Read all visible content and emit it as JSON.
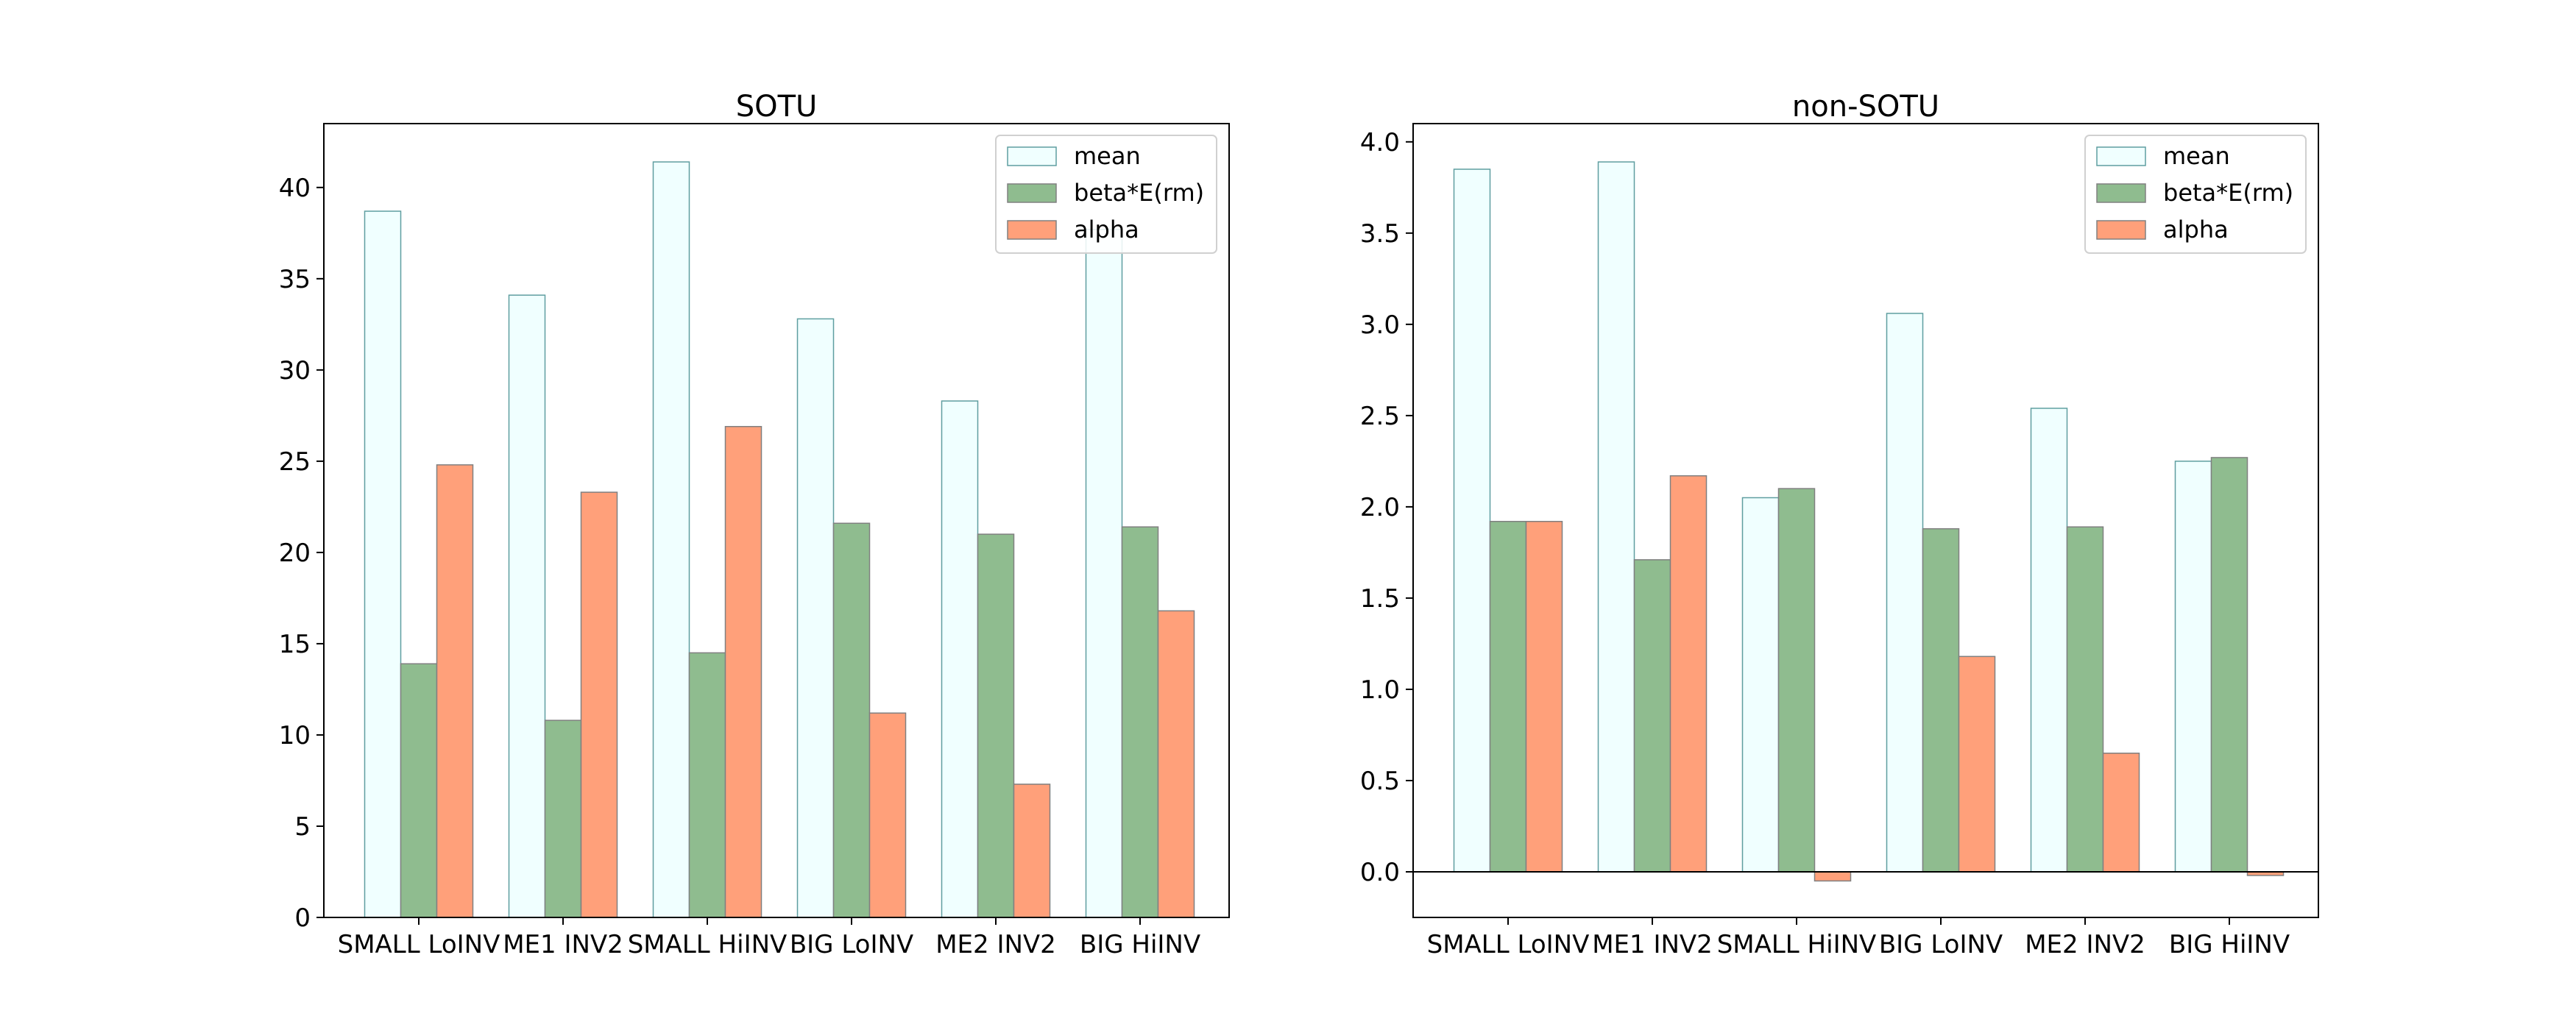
{
  "colors": {
    "mean_fill": "#f0ffff",
    "mean_edge": "#5f9ea0",
    "beta_fill": "#8fbc8f",
    "alpha_fill": "#ffa07a",
    "bar_edge": "#808080"
  },
  "chart_data": [
    {
      "type": "bar",
      "title": "SOTU",
      "categories": [
        "SMALL LoINV",
        "ME1 INV2",
        "SMALL HiINV",
        "BIG LoINV",
        "ME2 INV2",
        "BIG HiINV"
      ],
      "series": [
        {
          "name": "mean",
          "values": [
            38.7,
            34.1,
            41.4,
            32.8,
            28.3,
            37.7
          ]
        },
        {
          "name": "beta*E(rm)",
          "values": [
            13.9,
            10.8,
            14.5,
            21.6,
            21.0,
            21.4
          ]
        },
        {
          "name": "alpha",
          "values": [
            24.8,
            23.3,
            26.9,
            11.2,
            7.3,
            16.8
          ]
        }
      ],
      "ylim": [
        0,
        43.5
      ],
      "yticks": [
        "0",
        "5",
        "10",
        "15",
        "20",
        "25",
        "30",
        "35",
        "40"
      ],
      "ytick_values": [
        0,
        5,
        10,
        15,
        20,
        25,
        30,
        35,
        40
      ],
      "legend_position": "top-right",
      "grid": false
    },
    {
      "type": "bar",
      "title": "non-SOTU",
      "categories": [
        "SMALL LoINV",
        "ME1 INV2",
        "SMALL HiINV",
        "BIG LoINV",
        "ME2 INV2",
        "BIG HiINV"
      ],
      "series": [
        {
          "name": "mean",
          "values": [
            3.85,
            3.89,
            2.05,
            3.06,
            2.54,
            2.25
          ]
        },
        {
          "name": "beta*E(rm)",
          "values": [
            1.92,
            1.71,
            2.1,
            1.88,
            1.89,
            2.27
          ]
        },
        {
          "name": "alpha",
          "values": [
            1.92,
            2.17,
            -0.05,
            1.18,
            0.65,
            -0.02
          ]
        }
      ],
      "ylim": [
        -0.25,
        4.1
      ],
      "yticks": [
        "0.0",
        "0.5",
        "1.0",
        "1.5",
        "2.0",
        "2.5",
        "3.0",
        "3.5",
        "4.0"
      ],
      "ytick_values": [
        0,
        0.5,
        1.0,
        1.5,
        2.0,
        2.5,
        3.0,
        3.5,
        4.0
      ],
      "legend_position": "top-right",
      "grid": false,
      "zero_line": true
    }
  ]
}
